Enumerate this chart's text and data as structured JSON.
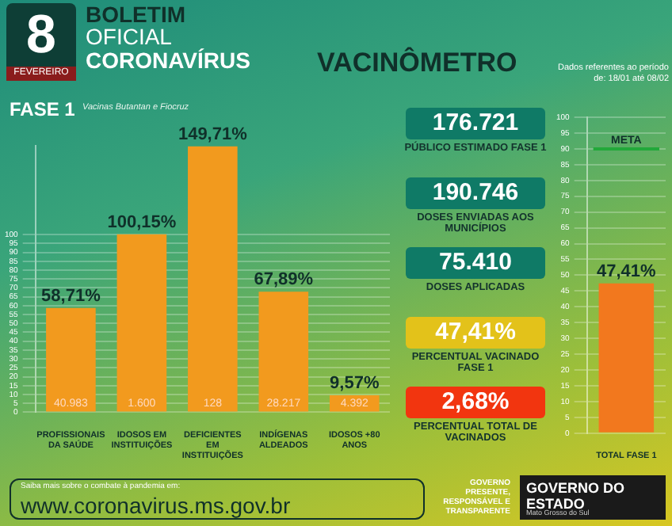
{
  "chart_data": [
    {
      "type": "bar",
      "title": "FASE 1",
      "subtitle": "Vacinas Butantan e Fiocruz",
      "categories": [
        "PROFISSIONAIS DA SAÚDE",
        "IDOSOS EM INSTITUIÇÕES",
        "DEFICIENTES EM INSTITUIÇÕES",
        "INDÍGENAS ALDEADOS",
        "IDOSOS +80 ANOS"
      ],
      "values": [
        58.71,
        100.15,
        149.71,
        67.89,
        9.57
      ],
      "value_labels": [
        "58,71%",
        "100,15%",
        "149,71%",
        "67,89%",
        "9,57%"
      ],
      "color": "#f29a1e",
      "ylim": [
        0,
        150
      ],
      "yticks": [
        0,
        5,
        10,
        15,
        20,
        25,
        30,
        35,
        40,
        45,
        50,
        55,
        60,
        65,
        70,
        75,
        80,
        85,
        90,
        95,
        100
      ],
      "grid": "y",
      "annotations": [
        {
          "text": "40.983",
          "x": "PROFISSIONAIS DA SAÚDE",
          "y": 0
        },
        {
          "text": "1.600",
          "x": "IDOSOS EM INSTITUIÇÕES",
          "y": 0
        },
        {
          "text": "128",
          "x": "DEFICIENTES EM INSTITUIÇÕES",
          "y": 0
        },
        {
          "text": "28.217",
          "x": "INDÍGENAS ALDEADOS",
          "y": 0
        },
        {
          "text": "4.392",
          "x": "IDOSOS +80 ANOS",
          "y": 0
        },
        "8",
        "FEVEREIRO",
        "BOLETIM",
        "OFICIAL",
        "CORONAVÍRUS",
        "Saiba mais sobre o combate à pandemia em:",
        "www.coronavirus.ms.gov.br",
        "GOVERNO PRESENTE, RESPONSÁVEL E TRANSPARENTE",
        "GOVERNO DO ESTADO",
        "Mato Grosso do Sul"
      ]
    },
    {
      "type": "other",
      "title": "VACINÔMETRO",
      "colors": [
        "#0f7a66",
        "#0f7a66",
        "#0f7a66",
        "#e3c21a",
        "#f2350f"
      ],
      "annotations": [
        "176.721",
        "PÚBLICO ESTIMADO FASE 1",
        "190.746",
        "DOSES ENVIADAS AOS MUNICÍPIOS",
        "75.410",
        "DOSES APLICADAS",
        "47,41%",
        "PERCENTUAL VACINADO FASE 1",
        "2,68%",
        "PERCENTUAL TOTAL DE VACINADOS"
      ]
    },
    {
      "type": "bar",
      "subtitle": "Dados referentes ao período de: 18/01 até 08/02",
      "categories": [
        "TOTAL FASE 1"
      ],
      "values": [
        47.41
      ],
      "value_labels": [
        "47,41%"
      ],
      "color": "#f2781e",
      "ylim": [
        0,
        100
      ],
      "yticks": [
        0,
        5,
        10,
        15,
        20,
        25,
        30,
        35,
        40,
        45,
        50,
        55,
        60,
        65,
        70,
        75,
        80,
        85,
        90,
        95,
        100
      ],
      "grid": "y",
      "ref_lines": [
        {
          "axis": "y",
          "value": 90,
          "label": "META",
          "color": "#22a83a"
        }
      ]
    }
  ]
}
